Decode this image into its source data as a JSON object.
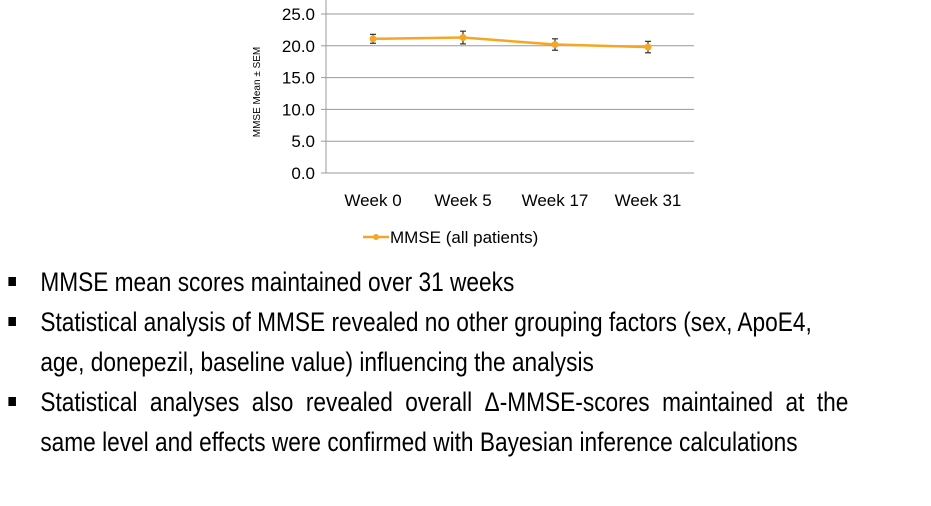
{
  "chart_data": {
    "type": "line",
    "categories": [
      "Week 0",
      "Week 5",
      "Week 17",
      "Week 31"
    ],
    "series": [
      {
        "name": "MMSE (all patients)",
        "values": [
          21.1,
          21.3,
          20.2,
          19.8
        ],
        "error": [
          0.7,
          1.0,
          0.9,
          0.9
        ],
        "color": "#F5A623"
      }
    ],
    "ylabel": "MMSE Mean ± SEM",
    "ylim": [
      0,
      25
    ],
    "yticks": [
      0,
      5,
      10,
      15,
      20,
      25
    ],
    "ytick_labels": [
      "0.0",
      "5.0",
      "10.0",
      "15.0",
      "20.0",
      "25.0"
    ],
    "grid": true,
    "legend": "bottom"
  },
  "bullets": [
    "MMSE mean scores maintained over 31 weeks",
    "Statistical analysis of MMSE revealed no other grouping factors (sex, ApoE4, age, donepezil, baseline value) influencing the analysis",
    "Statistical analyses also revealed overall Δ-MMSE-scores maintained at the same level and effects were confirmed with Bayesian inference calculations"
  ]
}
